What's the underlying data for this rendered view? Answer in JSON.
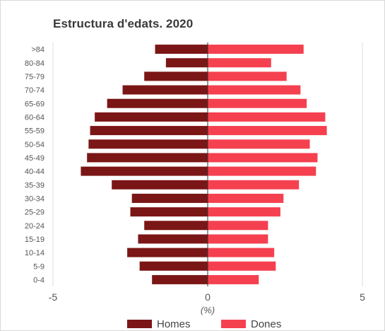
{
  "chart_data": {
    "type": "bar",
    "orientation": "horizontal",
    "layout": "population-pyramid",
    "title": "Estructura d'edats. 2020",
    "xlabel": "(%)",
    "xlim": [
      -5,
      5
    ],
    "xticks": [
      -5,
      0,
      5
    ],
    "xtick_labels": [
      "-5",
      "0",
      "5"
    ],
    "grid": true,
    "legend": "bottom",
    "categories": [
      ">84",
      "80-84",
      "75-79",
      "70-74",
      "65-69",
      "60-64",
      "55-59",
      "50-54",
      "45-49",
      "40-44",
      "35-39",
      "30-34",
      "25-29",
      "20-24",
      "15-19",
      "10-14",
      "5-9",
      "0-4"
    ],
    "series": [
      {
        "name": "Homes",
        "color": "#7b1616",
        "side": "left",
        "values": [
          1.7,
          1.35,
          2.05,
          2.75,
          3.25,
          3.65,
          3.8,
          3.85,
          3.9,
          4.1,
          3.1,
          2.45,
          2.5,
          2.05,
          2.25,
          2.6,
          2.2,
          1.8
        ]
      },
      {
        "name": "Dones",
        "color": "#f54050",
        "side": "right",
        "values": [
          3.1,
          2.05,
          2.55,
          3.0,
          3.2,
          3.8,
          3.85,
          3.3,
          3.55,
          3.5,
          2.95,
          2.45,
          2.35,
          1.95,
          1.95,
          2.15,
          2.2,
          1.65
        ]
      }
    ]
  }
}
